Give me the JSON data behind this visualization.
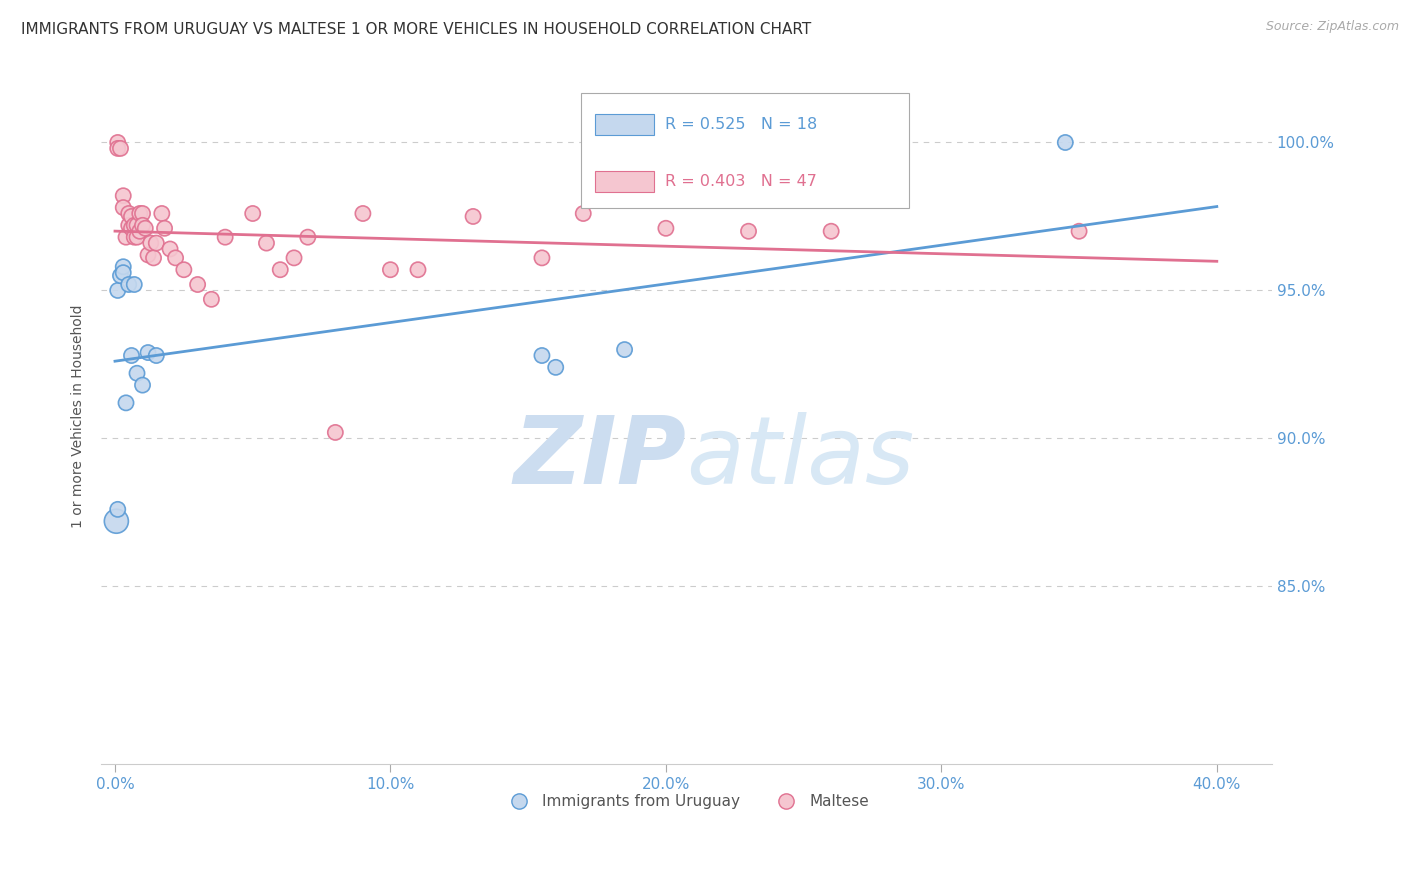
{
  "title": "IMMIGRANTS FROM URUGUAY VS MALTESE 1 OR MORE VEHICLES IN HOUSEHOLD CORRELATION CHART",
  "source": "Source: ZipAtlas.com",
  "ylabel": "1 or more Vehicles in Household",
  "y_tick_labels": [
    "85.0%",
    "90.0%",
    "95.0%",
    "100.0%"
  ],
  "y_tick_values": [
    0.85,
    0.9,
    0.95,
    1.0
  ],
  "x_tick_labels": [
    "0.0%",
    "10.0%",
    "20.0%",
    "30.0%",
    "40.0%"
  ],
  "x_tick_values": [
    0.0,
    0.1,
    0.2,
    0.3,
    0.4
  ],
  "xlim": [
    -0.005,
    0.42
  ],
  "ylim": [
    0.79,
    1.025
  ],
  "background_color": "#ffffff",
  "grid_color": "#cccccc",
  "title_color": "#333333",
  "source_color": "#aaaaaa",
  "uruguay_color": "#c5d8ee",
  "uruguay_edge_color": "#5b9bd5",
  "uruguay_label": "Immigrants from Uruguay",
  "uruguay_R": 0.525,
  "uruguay_N": 18,
  "maltese_color": "#f5c6d0",
  "maltese_edge_color": "#e07090",
  "maltese_label": "Maltese",
  "maltese_R": 0.403,
  "maltese_N": 47,
  "watermark_zip": "ZIP",
  "watermark_atlas": "atlas",
  "watermark_color": "#ddeeff",
  "uruguay_x": [
    0.0005,
    0.001,
    0.001,
    0.002,
    0.003,
    0.003,
    0.004,
    0.005,
    0.006,
    0.007,
    0.008,
    0.01,
    0.012,
    0.015,
    0.155,
    0.16,
    0.185,
    0.345
  ],
  "uruguay_y": [
    0.872,
    0.876,
    0.95,
    0.955,
    0.958,
    0.956,
    0.912,
    0.952,
    0.928,
    0.952,
    0.922,
    0.918,
    0.929,
    0.928,
    0.928,
    0.924,
    0.93,
    1.0
  ],
  "uruguay_sizes": [
    300,
    120,
    120,
    120,
    120,
    120,
    120,
    120,
    120,
    120,
    120,
    120,
    120,
    120,
    120,
    120,
    120,
    120
  ],
  "maltese_x": [
    0.001,
    0.001,
    0.002,
    0.003,
    0.003,
    0.004,
    0.005,
    0.005,
    0.006,
    0.006,
    0.007,
    0.007,
    0.008,
    0.008,
    0.009,
    0.009,
    0.01,
    0.01,
    0.011,
    0.012,
    0.013,
    0.014,
    0.015,
    0.017,
    0.018,
    0.02,
    0.022,
    0.025,
    0.03,
    0.035,
    0.04,
    0.05,
    0.055,
    0.06,
    0.065,
    0.07,
    0.08,
    0.09,
    0.1,
    0.11,
    0.13,
    0.155,
    0.17,
    0.2,
    0.23,
    0.26,
    0.35
  ],
  "maltese_y": [
    1.0,
    0.998,
    0.998,
    0.982,
    0.978,
    0.968,
    0.976,
    0.972,
    0.975,
    0.971,
    0.972,
    0.968,
    0.972,
    0.968,
    0.976,
    0.97,
    0.976,
    0.972,
    0.971,
    0.962,
    0.966,
    0.961,
    0.966,
    0.976,
    0.971,
    0.964,
    0.961,
    0.957,
    0.952,
    0.947,
    0.968,
    0.976,
    0.966,
    0.957,
    0.961,
    0.968,
    0.902,
    0.976,
    0.957,
    0.957,
    0.975,
    0.961,
    0.976,
    0.971,
    0.97,
    0.97,
    0.97
  ],
  "maltese_sizes": [
    120,
    120,
    120,
    120,
    120,
    120,
    120,
    120,
    120,
    120,
    120,
    120,
    120,
    120,
    120,
    120,
    120,
    120,
    120,
    120,
    120,
    120,
    120,
    120,
    120,
    120,
    120,
    120,
    120,
    120,
    120,
    120,
    120,
    120,
    120,
    120,
    120,
    120,
    120,
    120,
    120,
    120,
    120,
    120,
    120,
    120,
    120
  ]
}
